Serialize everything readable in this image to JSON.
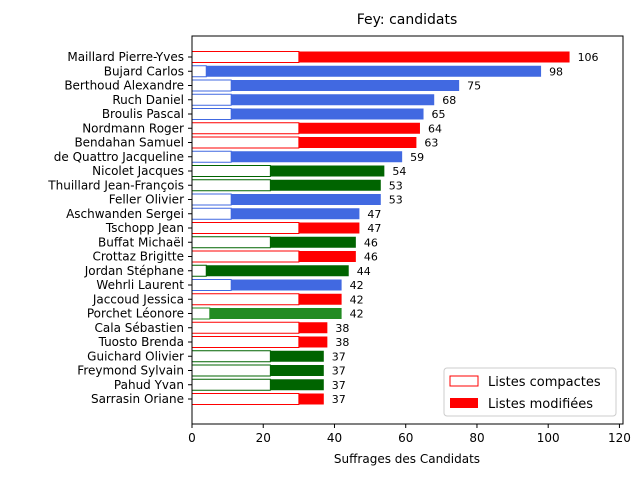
{
  "chart_data": {
    "type": "bar",
    "orientation": "horizontal",
    "stacked": true,
    "title": "Fey: candidats",
    "xlabel": "Suffrages des Candidats",
    "ylabel": "",
    "xlim": [
      0,
      121
    ],
    "xticks": [
      0,
      20,
      40,
      60,
      80,
      100,
      120
    ],
    "categories": [
      "Maillard Pierre-Yves",
      "Bujard Carlos",
      "Berthoud Alexandre",
      "Ruch Daniel",
      "Broulis Pascal",
      "Nordmann Roger",
      "Bendahan Samuel",
      "de Quattro Jacqueline",
      "Nicolet Jacques",
      "Thuillard Jean-François",
      "Feller Olivier",
      "Aschwanden Sergei",
      "Tschopp Jean",
      "Buffat Michaël",
      "Crottaz Brigitte",
      "Jordan Stéphane",
      "Wehrli Laurent",
      "Jaccoud Jessica",
      "Porchet Léonore",
      "Cala Sébastien",
      "Tuosto Brenda",
      "Guichard Olivier",
      "Freymond Sylvain",
      "Pahud Yvan",
      "Sarrasin Oriane"
    ],
    "totals": [
      106,
      98,
      75,
      68,
      65,
      64,
      63,
      59,
      54,
      53,
      53,
      47,
      47,
      46,
      46,
      44,
      42,
      42,
      42,
      38,
      38,
      37,
      37,
      37,
      37
    ],
    "compactes": [
      30,
      4,
      11,
      11,
      11,
      30,
      30,
      11,
      22,
      22,
      11,
      11,
      30,
      22,
      30,
      4,
      11,
      30,
      5,
      30,
      30,
      22,
      22,
      22,
      30
    ],
    "colors": [
      "#ff0000",
      "#4169e1",
      "#4169e1",
      "#4169e1",
      "#4169e1",
      "#ff0000",
      "#ff0000",
      "#4169e1",
      "#006400",
      "#006400",
      "#4169e1",
      "#4169e1",
      "#ff0000",
      "#006400",
      "#ff0000",
      "#006400",
      "#4169e1",
      "#ff0000",
      "#228b22",
      "#ff0000",
      "#ff0000",
      "#006400",
      "#006400",
      "#006400",
      "#ff0000"
    ],
    "legend": {
      "position": "lower-right",
      "entries": [
        {
          "label": "Listes compactes",
          "style": "outline",
          "color": "#ff0000"
        },
        {
          "label": "Listes modifiées",
          "style": "filled",
          "color": "#ff0000"
        }
      ]
    },
    "grid": false
  }
}
